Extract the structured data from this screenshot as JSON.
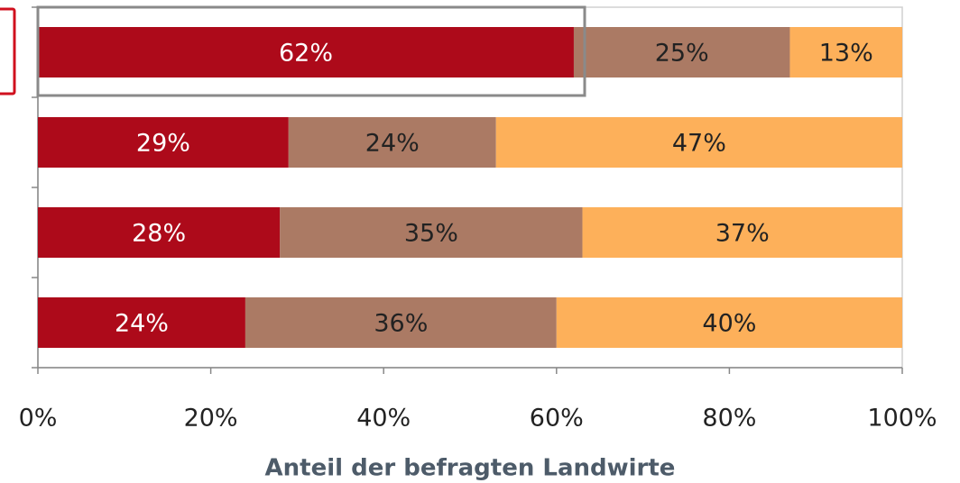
{
  "chart_data": {
    "type": "stacked_barh",
    "categories": [
      null,
      null,
      null,
      null
    ],
    "series": [
      {
        "color": "#ad0a1a",
        "values": [
          62,
          29,
          28,
          24
        ],
        "value_labels": [
          "62%",
          "29%",
          "28%",
          "24%"
        ]
      },
      {
        "color": "#ab7a64",
        "values": [
          25,
          24,
          35,
          36
        ],
        "value_labels": [
          "25%",
          "24%",
          "35%",
          "36%"
        ]
      },
      {
        "color": "#fdb05a",
        "values": [
          13,
          47,
          37,
          40
        ],
        "value_labels": [
          "13%",
          "47%",
          "37%",
          "40%"
        ]
      }
    ],
    "xlim": [
      0,
      100
    ],
    "xticks": [
      {
        "value": 0,
        "label": "0%"
      },
      {
        "value": 20,
        "label": "20%"
      },
      {
        "value": 40,
        "label": "40%"
      },
      {
        "value": 60,
        "label": "60%"
      },
      {
        "value": 80,
        "label": "80%"
      },
      {
        "value": 100,
        "label": "100%"
      }
    ],
    "xlabel": "Anteil der befragten Landwirte",
    "grid": false
  }
}
